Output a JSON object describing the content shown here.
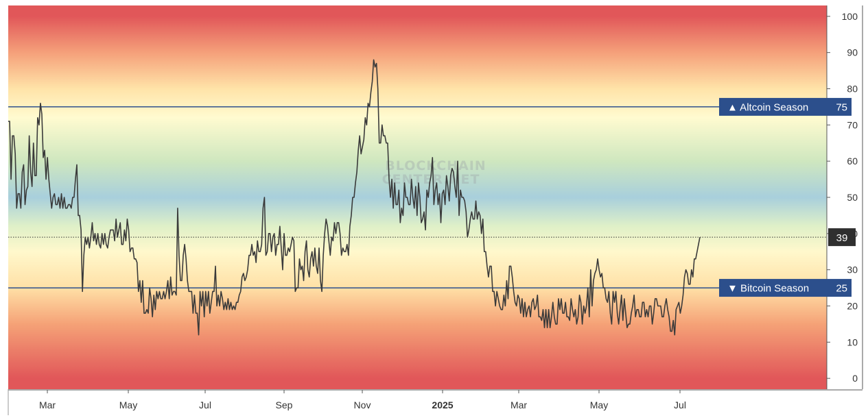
{
  "chart_data": {
    "type": "line",
    "title": "",
    "watermark": [
      "BLOCKCHAIN",
      "CENTER.NET"
    ],
    "ylim": [
      -3,
      103
    ],
    "y_ticks": [
      0,
      10,
      20,
      30,
      40,
      50,
      60,
      70,
      80,
      90,
      100
    ],
    "x_ticks": [
      {
        "label": "Mar",
        "x": "2024-03",
        "bold": false
      },
      {
        "label": "May",
        "x": "2024-05",
        "bold": false
      },
      {
        "label": "Jul",
        "x": "2024-07",
        "bold": false
      },
      {
        "label": "Sep",
        "x": "2024-09",
        "bold": false
      },
      {
        "label": "Nov",
        "x": "2024-11",
        "bold": false
      },
      {
        "label": "2025",
        "x": "2025-01",
        "bold": true
      },
      {
        "label": "Mar",
        "x": "2025-03",
        "bold": false
      },
      {
        "label": "May",
        "x": "2025-05",
        "bold": false
      },
      {
        "label": "Jul",
        "x": "2025-07",
        "bold": false
      }
    ],
    "thresholds": [
      {
        "label": "▲ Altcoin Season",
        "value": 75,
        "value_text": "75",
        "color": "#2c4f8c"
      },
      {
        "label": "▼ Bitcoin Season",
        "value": 25,
        "value_text": "25",
        "color": "#2c4f8c"
      }
    ],
    "current": {
      "value": 39,
      "value_text": "39",
      "color": "#2f2f2f"
    },
    "series_color": "#3a3a3a",
    "background_gradient": [
      {
        "level": 100,
        "color": "#e15759"
      },
      {
        "level": 90,
        "color": "#f5a07a"
      },
      {
        "level": 80,
        "color": "#ffe3a8"
      },
      {
        "level": 72,
        "color": "#fffbd0"
      },
      {
        "level": 60,
        "color": "#cfe7bf"
      },
      {
        "level": 50,
        "color": "#a8cfdc"
      },
      {
        "level": 42,
        "color": "#dff0c8"
      },
      {
        "level": 35,
        "color": "#fff8cc"
      },
      {
        "level": 25,
        "color": "#ffe0a6"
      },
      {
        "level": 15,
        "color": "#f5a277"
      },
      {
        "level": 0,
        "color": "#e15759"
      }
    ],
    "series": [
      {
        "values": [
          71,
          71,
          55,
          67,
          67,
          62,
          47,
          51,
          51,
          47,
          57,
          59,
          48,
          52,
          53,
          67,
          57,
          53,
          65,
          56,
          56,
          72,
          70,
          76,
          73,
          61,
          63,
          55,
          61,
          55,
          51,
          47,
          50,
          51,
          48,
          48,
          50,
          47,
          51,
          47,
          50,
          47,
          47,
          48,
          48,
          47,
          50,
          50,
          55,
          59,
          45,
          45,
          41,
          24,
          34,
          39,
          37,
          39,
          36,
          39,
          43,
          38,
          40,
          37,
          40,
          37,
          36,
          40,
          37,
          40,
          37,
          36,
          39,
          41,
          41,
          41,
          38,
          44,
          39,
          41,
          43,
          37,
          37,
          41,
          38,
          44,
          41,
          35,
          36,
          36,
          33,
          33,
          32,
          24,
          27,
          21,
          27,
          18,
          18,
          19,
          18,
          25,
          22,
          17,
          23,
          19,
          24,
          22,
          24,
          22,
          22,
          24,
          22,
          24,
          27,
          22,
          28,
          23,
          24,
          24,
          23,
          47,
          34,
          27,
          27,
          34,
          37,
          33,
          27,
          24,
          24,
          24,
          18,
          23,
          18,
          18,
          12,
          24,
          20,
          24,
          17,
          24,
          20,
          24,
          18,
          21,
          24,
          24,
          31,
          20,
          23,
          20,
          24,
          22,
          19,
          21,
          19,
          22,
          19,
          21,
          19,
          20,
          19,
          21,
          21,
          23,
          24,
          28,
          29,
          27,
          28,
          30,
          34,
          34,
          37,
          34,
          35,
          32,
          38,
          35,
          35,
          37,
          47,
          50,
          34,
          35,
          40,
          40,
          35,
          39,
          40,
          34,
          37,
          37,
          42,
          36,
          30,
          40,
          34,
          34,
          36,
          35,
          37,
          39,
          38,
          24,
          25,
          25,
          33,
          30,
          31,
          27,
          35,
          38,
          30,
          28,
          33,
          35,
          31,
          36,
          31,
          29,
          36,
          27,
          24,
          34,
          40,
          44,
          42,
          38,
          34,
          39,
          38,
          43,
          40,
          43,
          43,
          40,
          34,
          36,
          35,
          35,
          37,
          34,
          42,
          45,
          50,
          50,
          54,
          57,
          63,
          67,
          62,
          64,
          66,
          72,
          70,
          76,
          75,
          79,
          82,
          88,
          86,
          87,
          80,
          65,
          65,
          70,
          67,
          67,
          65,
          65,
          55,
          50,
          55,
          47,
          54,
          48,
          48,
          52,
          43,
          47,
          45,
          54,
          50,
          50,
          48,
          48,
          55,
          50,
          47,
          53,
          45,
          54,
          50,
          43,
          44,
          46,
          41,
          52,
          50,
          54,
          56,
          61,
          48,
          52,
          54,
          48,
          51,
          43,
          51,
          52,
          48,
          56,
          53,
          49,
          56,
          58,
          57,
          53,
          50,
          60,
          45,
          52,
          50,
          50,
          49,
          46,
          39,
          41,
          44,
          46,
          44,
          44,
          49,
          44,
          46,
          45,
          40,
          44,
          35,
          35,
          31,
          28,
          31,
          31,
          24,
          24,
          20,
          24,
          22,
          20,
          19,
          19,
          23,
          20,
          27,
          22,
          31,
          31,
          28,
          24,
          21,
          20,
          23,
          22,
          18,
          22,
          17,
          21,
          17,
          19,
          20,
          17,
          21,
          22,
          19,
          20,
          23,
          17,
          17,
          16,
          19,
          14,
          19,
          14,
          19,
          14,
          17,
          21,
          17,
          15,
          15,
          22,
          19,
          22,
          18,
          18,
          21,
          17,
          17,
          16,
          22,
          19,
          17,
          19,
          15,
          17,
          23,
          21,
          15,
          20,
          18,
          20,
          25,
          17,
          30,
          20,
          27,
          29,
          30,
          33,
          30,
          28,
          29,
          25,
          25,
          22,
          21,
          24,
          18,
          15,
          24,
          21,
          24,
          18,
          15,
          19,
          23,
          16,
          22,
          18,
          14,
          15,
          15,
          18,
          20,
          23,
          17,
          19,
          19,
          17,
          17,
          21,
          21,
          17,
          19,
          17,
          20,
          20,
          15,
          18,
          22,
          22,
          20,
          20,
          20,
          17,
          17,
          20,
          22,
          19,
          17,
          13,
          13,
          16,
          12,
          19,
          20,
          21,
          18,
          20,
          23,
          28,
          30,
          29,
          26,
          26,
          30,
          28,
          33,
          33,
          35,
          37,
          39
        ]
      }
    ]
  }
}
